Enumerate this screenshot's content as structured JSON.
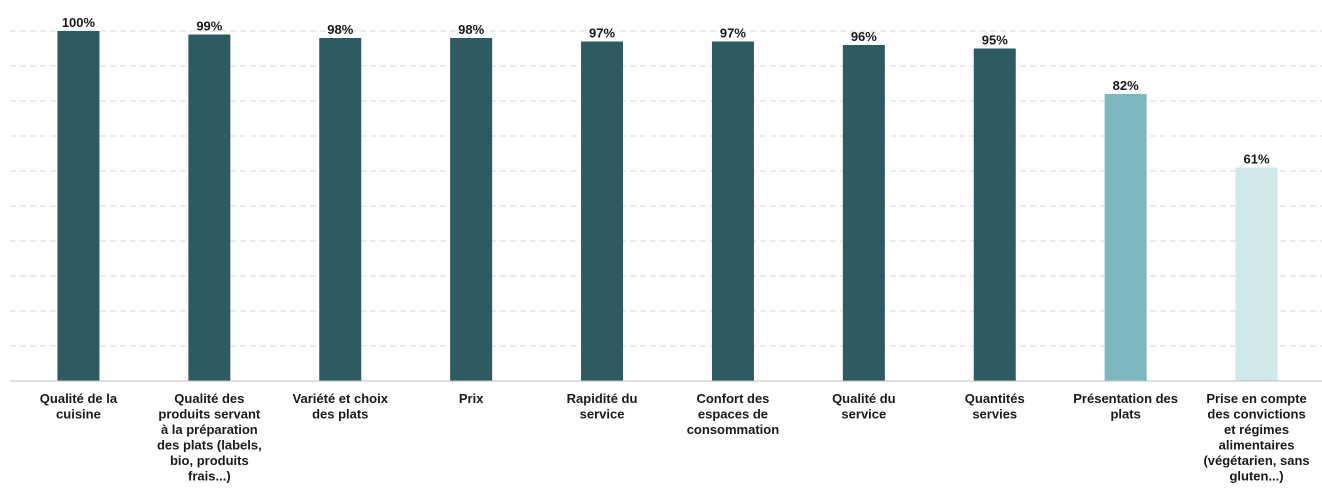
{
  "chart_data": {
    "type": "bar",
    "categories": [
      [
        "Qualité de la",
        "cuisine"
      ],
      [
        "Qualité des",
        "produits servant",
        "à la préparation",
        "des plats (labels,",
        "bio, produits",
        "frais...)"
      ],
      [
        "Variété et choix",
        "des plats"
      ],
      [
        "Prix"
      ],
      [
        "Rapidité du",
        "service"
      ],
      [
        "Confort des",
        "espaces de",
        "consommation"
      ],
      [
        "Qualité du",
        "service"
      ],
      [
        "Quantités",
        "servies"
      ],
      [
        "Présentation des",
        "plats"
      ],
      [
        "Prise en compte",
        "des convictions",
        "et régimes",
        "alimentaires",
        "(végétarien, sans",
        "gluten...)"
      ]
    ],
    "values": [
      100,
      99,
      98,
      98,
      97,
      97,
      96,
      95,
      82,
      61
    ],
    "value_labels": [
      "100%",
      "99%",
      "98%",
      "98%",
      "97%",
      "97%",
      "96%",
      "95%",
      "82%",
      "61%"
    ],
    "bar_colors": [
      "#2e5a61",
      "#2e5a61",
      "#2e5a61",
      "#2e5a61",
      "#2e5a61",
      "#2e5a61",
      "#2e5a61",
      "#2e5a61",
      "#7db7bf",
      "#d3e8eb"
    ],
    "ylim": [
      0,
      100
    ],
    "grid": true,
    "legend": "none"
  }
}
